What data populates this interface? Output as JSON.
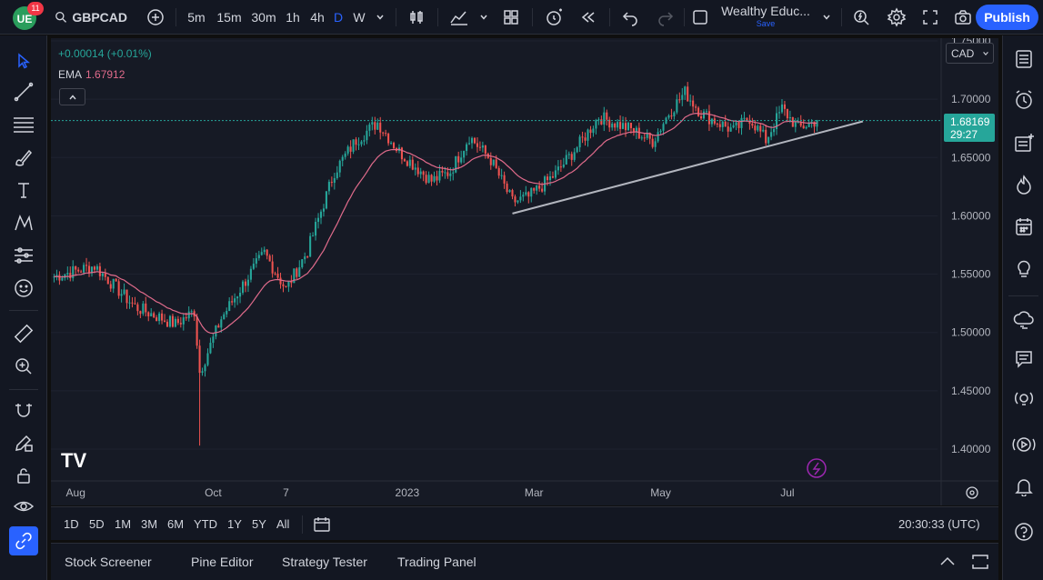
{
  "app": {
    "notification_count": "11",
    "symbol": "GBPCAD",
    "intervals": [
      "5m",
      "15m",
      "30m",
      "1h",
      "4h",
      "D",
      "W"
    ],
    "active_interval": "D",
    "layout_name": "Wealthy Educ...",
    "layout_save": "Save",
    "publish_label": "Publish"
  },
  "legend": {
    "change": "+0.00014 (+0.01%)",
    "ema_label": "EMA",
    "ema_value": "1.67912"
  },
  "price_scale": {
    "currency": "CAD",
    "current_price": "1.68169",
    "countdown": "29:27",
    "ticks": [
      "1.75000",
      "1.70000",
      "1.65000",
      "1.60000",
      "1.55000",
      "1.50000",
      "1.45000",
      "1.40000"
    ]
  },
  "time_axis": {
    "labels": [
      "Aug",
      "Oct",
      "7",
      "2023",
      "Mar",
      "May",
      "Jul"
    ]
  },
  "range_bar": {
    "ranges": [
      "1D",
      "5D",
      "1M",
      "3M",
      "6M",
      "YTD",
      "1Y",
      "5Y",
      "All"
    ],
    "clock": "20:30:33 (UTC)"
  },
  "bottom_panel": {
    "tabs": [
      "Stock Screener",
      "Pine Editor",
      "Strategy Tester",
      "Trading Panel"
    ]
  },
  "colors": {
    "up": "#26a69a",
    "down": "#ef5350",
    "ema": "#e06b8b",
    "trendline": "#b2b5be",
    "accent": "#2962ff"
  },
  "chart_data": {
    "type": "candlestick",
    "symbol": "GBPCAD",
    "timeframe": "D",
    "ylim": [
      1.38,
      1.75
    ],
    "x_labels": [
      "Aug",
      "Oct",
      "7",
      "2023",
      "Mar",
      "May",
      "Jul"
    ],
    "anchors": [
      {
        "bar": 0,
        "close": 1.548
      },
      {
        "bar": 15,
        "close": 1.557
      },
      {
        "bar": 30,
        "close": 1.522
      },
      {
        "bar": 45,
        "close": 1.507
      },
      {
        "bar": 52,
        "close": 1.518
      },
      {
        "bar": 54,
        "close": 1.466
      },
      {
        "bar": 62,
        "close": 1.512
      },
      {
        "bar": 72,
        "close": 1.548
      },
      {
        "bar": 78,
        "close": 1.568
      },
      {
        "bar": 86,
        "close": 1.537
      },
      {
        "bar": 94,
        "close": 1.57
      },
      {
        "bar": 104,
        "close": 1.638
      },
      {
        "bar": 112,
        "close": 1.665
      },
      {
        "bar": 120,
        "close": 1.68
      },
      {
        "bar": 128,
        "close": 1.655
      },
      {
        "bar": 140,
        "close": 1.63
      },
      {
        "bar": 147,
        "close": 1.638
      },
      {
        "bar": 154,
        "close": 1.668
      },
      {
        "bar": 162,
        "close": 1.648
      },
      {
        "bar": 170,
        "close": 1.612
      },
      {
        "bar": 176,
        "close": 1.616
      },
      {
        "bar": 186,
        "close": 1.636
      },
      {
        "bar": 195,
        "close": 1.662
      },
      {
        "bar": 202,
        "close": 1.685
      },
      {
        "bar": 214,
        "close": 1.674
      },
      {
        "bar": 222,
        "close": 1.664
      },
      {
        "bar": 228,
        "close": 1.688
      },
      {
        "bar": 234,
        "close": 1.706
      },
      {
        "bar": 240,
        "close": 1.688
      },
      {
        "bar": 252,
        "close": 1.673
      },
      {
        "bar": 258,
        "close": 1.684
      },
      {
        "bar": 264,
        "close": 1.665
      },
      {
        "bar": 270,
        "close": 1.692
      },
      {
        "bar": 276,
        "close": 1.675
      },
      {
        "bar": 283,
        "close": 1.682
      }
    ],
    "trendline": [
      {
        "bar": 170,
        "price": 1.602
      },
      {
        "bar": 300,
        "price": 1.681
      }
    ],
    "ema": {
      "label": "EMA",
      "value": 1.67912
    },
    "last_price": 1.68169
  }
}
